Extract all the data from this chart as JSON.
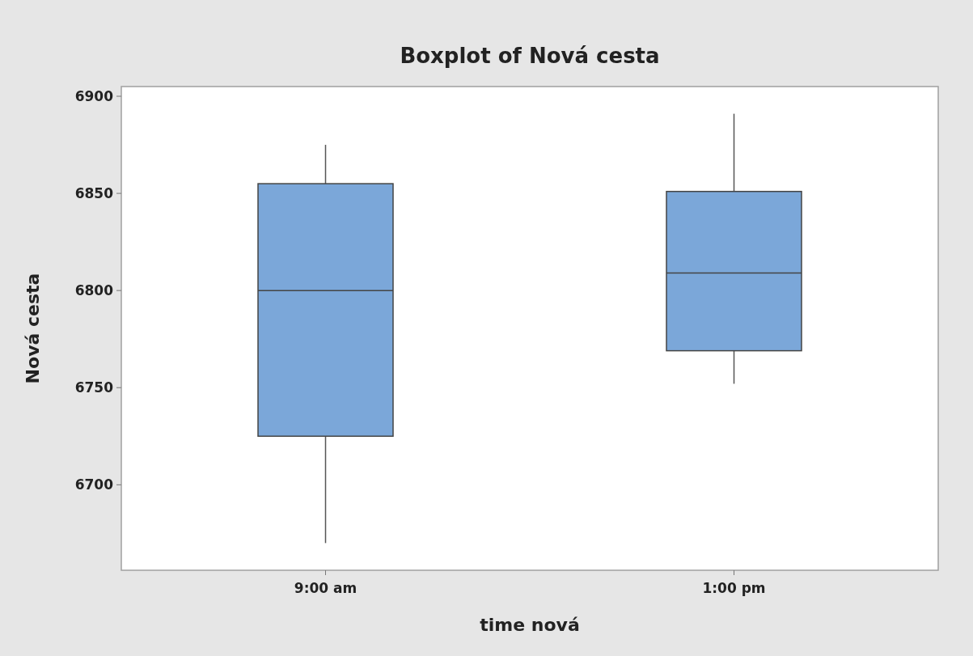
{
  "chart_data": {
    "type": "box",
    "title": "Boxplot of Nová cesta",
    "xlabel": "time nová",
    "ylabel": "Nová cesta",
    "categories": [
      "9:00 am",
      "1:00 pm"
    ],
    "boxes": [
      {
        "low": 6670,
        "q1": 6725,
        "median": 6800,
        "q3": 6855,
        "high": 6875
      },
      {
        "low": 6752,
        "q1": 6769,
        "median": 6809,
        "q3": 6851,
        "high": 6891
      }
    ],
    "color": "#7ba7d9",
    "ylim": [
      6656,
      6905
    ],
    "yticks": [
      6700,
      6750,
      6800,
      6850,
      6900
    ]
  }
}
